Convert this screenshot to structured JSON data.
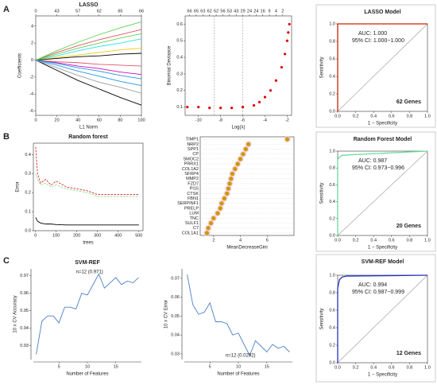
{
  "panel_labels": [
    "A",
    "B",
    "C"
  ],
  "chart_data": [
    {
      "type": "line",
      "title": "LASSO",
      "xlabel": "L1 Norm",
      "ylabel": "Coefficients",
      "box": true,
      "x": [
        0,
        20,
        40,
        60,
        80,
        100
      ],
      "xlim": [
        0,
        100
      ],
      "xticks": [
        0,
        20,
        40,
        60,
        80,
        100
      ],
      "x2ticks": [
        {
          "value": 0,
          "label": "0"
        },
        {
          "value": 20,
          "label": "43"
        },
        {
          "value": 40,
          "label": "57"
        },
        {
          "value": 60,
          "label": "62"
        },
        {
          "value": 80,
          "label": "65"
        },
        {
          "value": 100,
          "label": "66"
        }
      ],
      "ylim": [
        -6.5,
        5.2
      ],
      "yticks": [
        -6,
        -4,
        -2,
        0,
        2,
        4
      ],
      "series": [
        {
          "color": "#000000",
          "values": [
            0,
            -1.2,
            -2.4,
            -3.4,
            -4.4,
            -5.3
          ]
        },
        {
          "color": "#df536b",
          "values": [
            0,
            0.9,
            1.7,
            2.4,
            3.0,
            3.6
          ]
        },
        {
          "color": "#61d04f",
          "values": [
            0,
            1.1,
            2.1,
            3.0,
            3.8,
            4.5
          ]
        },
        {
          "color": "#2297e6",
          "values": [
            0,
            -0.6,
            -1.3,
            -1.9,
            -2.5,
            -3.0
          ]
        },
        {
          "color": "#28e2e5",
          "values": [
            0,
            0.5,
            1.1,
            1.6,
            2.0,
            2.5
          ]
        },
        {
          "color": "#cd0bbc",
          "values": [
            0,
            -0.3,
            -0.7,
            -1.0,
            -1.4,
            -1.7
          ]
        },
        {
          "color": "#f5c710",
          "values": [
            0,
            0.3,
            0.6,
            0.9,
            1.2,
            1.4
          ]
        },
        {
          "color": "#9e9e9e",
          "values": [
            0,
            -0.9,
            -1.8,
            -2.6,
            -3.2,
            -3.9
          ]
        },
        {
          "color": "#000000",
          "values": [
            0,
            0.2,
            0.4,
            0.5,
            0.7,
            0.8
          ]
        },
        {
          "color": "#df536b",
          "values": [
            0,
            -0.2,
            -0.3,
            -0.5,
            -0.6,
            -0.7
          ]
        },
        {
          "color": "#61d04f",
          "values": [
            0,
            0.7,
            1.4,
            2.0,
            2.6,
            3.1
          ]
        },
        {
          "color": "#2297e6",
          "values": [
            0,
            -0.4,
            -0.9,
            -1.3,
            -1.8,
            -2.2
          ]
        }
      ]
    },
    {
      "type": "line",
      "xlabel": "Log(λ)",
      "ylabel": "Binomial Deviance",
      "box": true,
      "x": [
        -11,
        -10,
        -9,
        -8,
        -7,
        -6,
        -5,
        -4.5,
        -4,
        -3.5,
        -3,
        -2.5,
        -2.2,
        -2,
        -1.9,
        -1.8
      ],
      "xlim": [
        -11.2,
        -1.6
      ],
      "xticks": [
        -10,
        -8,
        -6,
        -4,
        -2
      ],
      "x2ticks": [
        {
          "value": -10.8,
          "label": "66"
        },
        {
          "value": -10.2,
          "label": "65"
        },
        {
          "value": -9.6,
          "label": "63"
        },
        {
          "value": -9,
          "label": "62"
        },
        {
          "value": -8.4,
          "label": "62"
        },
        {
          "value": -7.8,
          "label": "56"
        },
        {
          "value": -7.2,
          "label": "53"
        },
        {
          "value": -6.6,
          "label": "43"
        },
        {
          "value": -6,
          "label": "29"
        },
        {
          "value": -5.4,
          "label": "24"
        },
        {
          "value": -4.8,
          "label": "24"
        },
        {
          "value": -4.2,
          "label": "16"
        },
        {
          "value": -3.6,
          "label": "9"
        },
        {
          "value": -3,
          "label": "4"
        },
        {
          "value": -2.4,
          "label": "2"
        }
      ],
      "ylim": [
        0.05,
        0.65
      ],
      "yticks": [
        0.1,
        0.2,
        0.3,
        0.4,
        0.5,
        0.6
      ],
      "vlines": [
        -8.6,
        -6.0
      ],
      "series": [
        {
          "color": "#dd0000",
          "markers": true,
          "values": [
            0.1,
            0.1,
            0.095,
            0.095,
            0.095,
            0.1,
            0.11,
            0.13,
            0.16,
            0.2,
            0.26,
            0.34,
            0.42,
            0.5,
            0.55,
            0.6
          ]
        }
      ]
    },
    {
      "type": "roc",
      "title": "LASSO Model",
      "xlabel": "1 − Specificity",
      "ylabel": "Sensitivity",
      "auc": "AUC: 1.000",
      "ci": "95% CI: 1.000−1.000",
      "genes": "62 Genes",
      "color": "#cc2200",
      "x": [
        0,
        0,
        1
      ],
      "values": [
        0,
        1,
        1
      ],
      "xlim": [
        0,
        1
      ],
      "ylim": [
        0,
        1
      ],
      "xticks": [
        {
          "value": 0,
          "label": "0.0"
        },
        0.2,
        0.4,
        0.6,
        0.8,
        {
          "value": 1,
          "label": "1.0"
        }
      ],
      "yticks": [
        {
          "value": 0,
          "label": "0.0"
        },
        0.2,
        0.4,
        0.6,
        0.8,
        {
          "value": 1,
          "label": "1.0"
        }
      ]
    },
    {
      "type": "line",
      "title": "Random forest",
      "xlabel": "trees",
      "ylabel": "Error",
      "box": true,
      "x": [
        1,
        10,
        25,
        50,
        75,
        100,
        150,
        200,
        250,
        300,
        400,
        500
      ],
      "xlim": [
        -10,
        520
      ],
      "xticks": [
        0,
        100,
        200,
        300,
        400,
        500
      ],
      "ylim": [
        0,
        0.46
      ],
      "yticks": [
        {
          "value": 0,
          "label": "0.0"
        },
        0.1,
        0.2,
        0.3,
        0.4
      ],
      "series": [
        {
          "color": "#dd2222",
          "dash": true,
          "values": [
            0.44,
            0.3,
            0.25,
            0.27,
            0.24,
            0.26,
            0.23,
            0.22,
            0.21,
            0.19,
            0.19,
            0.19
          ]
        },
        {
          "color": "#88dd88",
          "dash": true,
          "values": [
            0.3,
            0.27,
            0.24,
            0.25,
            0.23,
            0.24,
            0.22,
            0.21,
            0.2,
            0.18,
            0.18,
            0.18
          ]
        },
        {
          "color": "#000000",
          "values": [
            0.07,
            0.05,
            0.04,
            0.035,
            0.035,
            0.032,
            0.03,
            0.03,
            0.03,
            0.03,
            0.03,
            0.03
          ]
        }
      ]
    },
    {
      "type": "dot",
      "xlabel": "MeanDecreaseGini",
      "box": true,
      "color": "#cc9900",
      "categories": [
        "TIMP1",
        "NRP2",
        "SPP1",
        "CP",
        "SMOC2",
        "PRRX1",
        "COL1A2",
        "SFRP4",
        "MMP2",
        "FZD7",
        "PI15",
        "CTSK",
        "FBN1",
        "SERPINF1",
        "PRELP",
        "LUM",
        "TNC",
        "SULF1",
        "C7",
        "COL1A1"
      ],
      "values": [
        7.5,
        4.6,
        4.4,
        4.2,
        4.0,
        3.8,
        3.6,
        3.4,
        3.3,
        3.2,
        3.1,
        3.0,
        2.8,
        2.6,
        2.5,
        2.3,
        2.0,
        1.8,
        1.6,
        1.5
      ],
      "xlim": [
        1,
        8
      ],
      "xticks": [
        2,
        4,
        6
      ]
    },
    {
      "type": "roc",
      "title": "Random Forest Model",
      "xlabel": "1 − Specificity",
      "ylabel": "Sensitivity",
      "auc": "AUC: 0.987",
      "ci": "95% CI: 0.973−0.996",
      "genes": "20 Genes",
      "color": "#66dd99",
      "x": [
        0,
        0,
        0.02,
        0.05,
        0.2,
        1
      ],
      "values": [
        0,
        0.9,
        0.93,
        0.95,
        0.96,
        1
      ],
      "xlim": [
        0,
        1
      ],
      "ylim": [
        0,
        1
      ],
      "xticks": [
        {
          "value": 0,
          "label": "0.0"
        },
        0.2,
        0.4,
        0.6,
        0.8,
        {
          "value": 1,
          "label": "1.0"
        }
      ],
      "yticks": [
        {
          "value": 0,
          "label": "0.0"
        },
        0.2,
        0.4,
        0.6,
        0.8,
        {
          "value": 1,
          "label": "1.0"
        }
      ]
    },
    {
      "type": "line",
      "title": "SVM-REF",
      "xlabel": "Number of Features",
      "ylabel": "10 x CV Accuracy",
      "box": false,
      "annotation": "n=12 (0.971)",
      "x": [
        1,
        2,
        3,
        4,
        5,
        6,
        7,
        8,
        9,
        10,
        11,
        12,
        13,
        14,
        15,
        16,
        17,
        18,
        19
      ],
      "xlim": [
        0.5,
        19.5
      ],
      "xticks": [
        5,
        10,
        15
      ],
      "ylim": [
        0.922,
        0.974
      ],
      "yticks": [
        0.93,
        0.94,
        0.95,
        0.96,
        0.97
      ],
      "series": [
        {
          "color": "#4a7fc8",
          "values": [
            0.925,
            0.944,
            0.947,
            0.947,
            0.943,
            0.952,
            0.952,
            0.951,
            0.96,
            0.959,
            0.965,
            0.971,
            0.963,
            0.966,
            0.969,
            0.965,
            0.967,
            0.966,
            0.969
          ]
        }
      ]
    },
    {
      "type": "line",
      "xlabel": "Number of Features",
      "ylabel": "10 x CV Error",
      "box": false,
      "annotation": "n=12 (0.0292)",
      "x": [
        1,
        2,
        3,
        4,
        5,
        6,
        7,
        8,
        9,
        10,
        11,
        12,
        13,
        14,
        15,
        16,
        17,
        18,
        19
      ],
      "xlim": [
        0.5,
        19.5
      ],
      "xticks": [
        5,
        10,
        15
      ],
      "ylim": [
        0.027,
        0.075
      ],
      "yticks": [
        0.03,
        0.04,
        0.05,
        0.06,
        0.07
      ],
      "series": [
        {
          "color": "#4a7fc8",
          "values": [
            0.072,
            0.056,
            0.051,
            0.052,
            0.057,
            0.047,
            0.047,
            0.046,
            0.04,
            0.041,
            0.035,
            0.0292,
            0.037,
            0.034,
            0.031,
            0.035,
            0.033,
            0.034,
            0.031
          ]
        }
      ]
    },
    {
      "type": "roc",
      "title": "SVM-REF Model",
      "xlabel": "1 − Specificity",
      "ylabel": "Sensitivity",
      "auc": "AUC: 0.994",
      "ci": "95% CI: 0.987−0.999",
      "genes": "12 Genes",
      "color": "#2233bb",
      "x": [
        0,
        0,
        0.02,
        0.05,
        0.1,
        1
      ],
      "values": [
        0,
        0.85,
        0.95,
        0.98,
        0.99,
        1
      ],
      "xlim": [
        0,
        1
      ],
      "ylim": [
        0,
        1
      ],
      "xticks": [
        {
          "value": 0,
          "label": "0.0"
        },
        0.2,
        0.4,
        0.6,
        0.8,
        {
          "value": 1,
          "label": "1.0"
        }
      ],
      "yticks": [
        {
          "value": 0,
          "label": "0.0"
        },
        0.2,
        0.4,
        0.6,
        0.8,
        {
          "value": 1,
          "label": "1.0"
        }
      ]
    }
  ]
}
